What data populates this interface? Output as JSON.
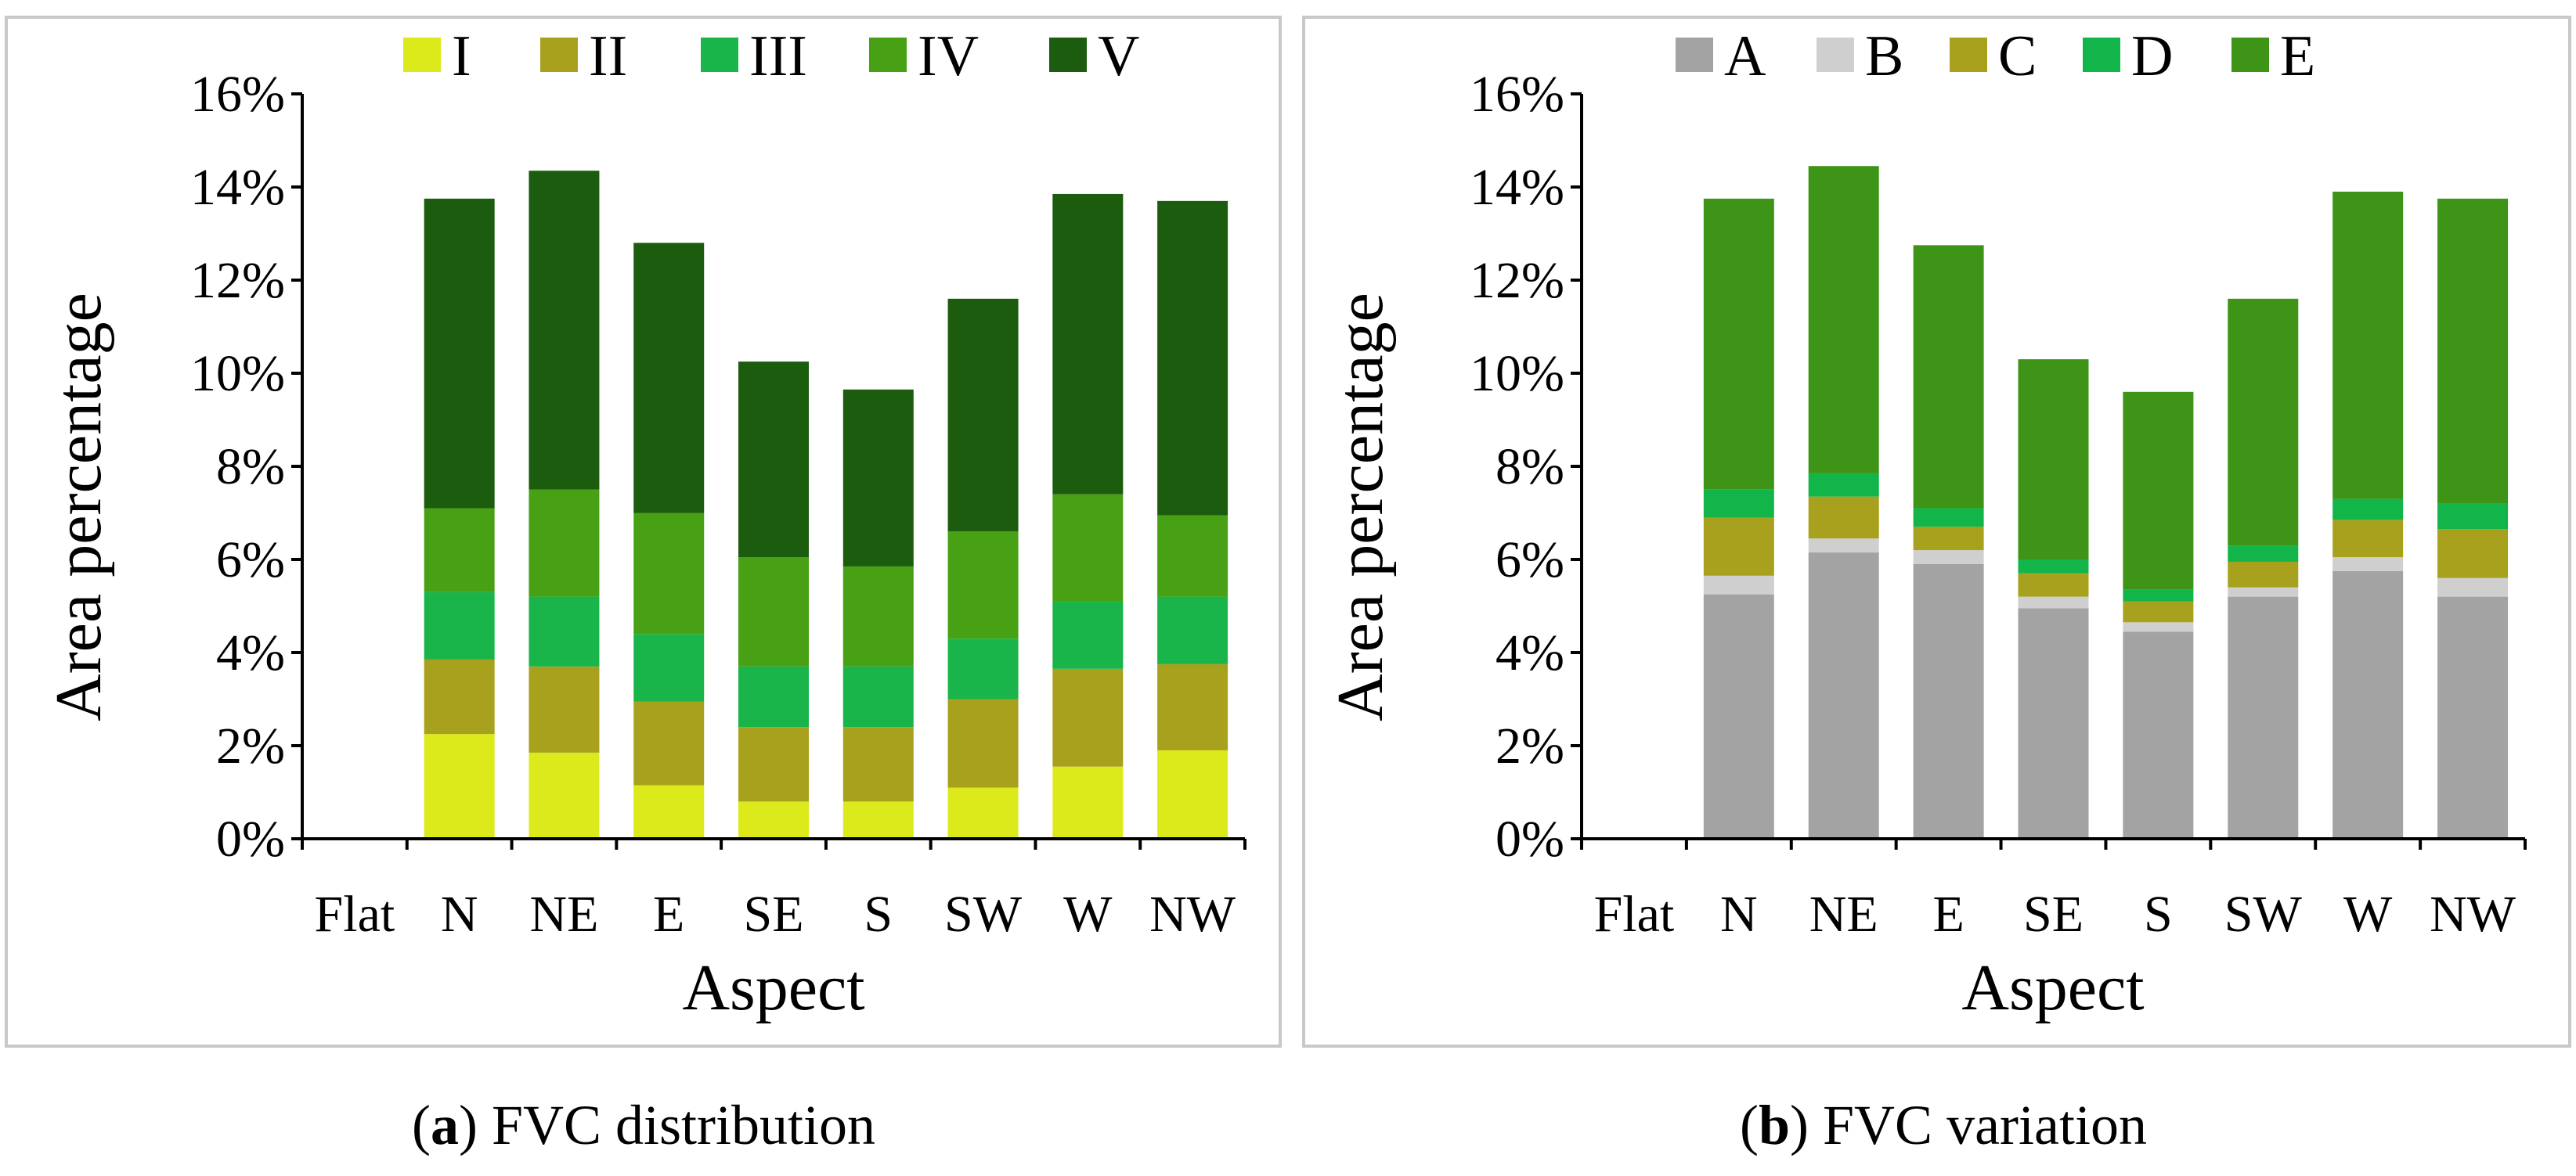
{
  "chart_data": [
    {
      "type": "bar",
      "stacked": true,
      "caption_label": "a",
      "caption_text": "FVC distribution",
      "xlabel": "Aspect",
      "ylabel": "Area percentage",
      "ylim": [
        0,
        16
      ],
      "yticks": [
        "0%",
        "2%",
        "4%",
        "6%",
        "8%",
        "10%",
        "12%",
        "14%",
        "16%"
      ],
      "categories": [
        "Flat",
        "N",
        "NE",
        "E",
        "SE",
        "S",
        "SW",
        "W",
        "NW"
      ],
      "legend_position": "top",
      "series": [
        {
          "name": "I",
          "color": "#dcea1c",
          "values": [
            0,
            2.25,
            1.85,
            1.15,
            0.8,
            0.8,
            1.1,
            1.55,
            1.9
          ]
        },
        {
          "name": "II",
          "color": "#a8a11e",
          "values": [
            0,
            1.6,
            1.85,
            1.8,
            1.6,
            1.6,
            1.9,
            2.1,
            1.85
          ]
        },
        {
          "name": "III",
          "color": "#1ab54a",
          "values": [
            0,
            1.45,
            1.5,
            1.45,
            1.3,
            1.3,
            1.3,
            1.45,
            1.45
          ]
        },
        {
          "name": "IV",
          "color": "#48a014",
          "values": [
            0,
            1.8,
            2.3,
            2.6,
            2.35,
            2.15,
            2.3,
            2.3,
            1.75
          ]
        },
        {
          "name": "V",
          "color": "#1c5c0e",
          "values": [
            0,
            6.65,
            6.85,
            5.8,
            4.2,
            3.8,
            5.0,
            6.45,
            6.75
          ]
        }
      ]
    },
    {
      "type": "bar",
      "stacked": true,
      "caption_label": "b",
      "caption_text": "FVC variation",
      "xlabel": "Aspect",
      "ylabel": "Area percentage",
      "ylim": [
        0,
        16
      ],
      "yticks": [
        "0%",
        "2%",
        "4%",
        "6%",
        "8%",
        "10%",
        "12%",
        "14%",
        "16%"
      ],
      "categories": [
        "Flat",
        "N",
        "NE",
        "E",
        "SE",
        "S",
        "SW",
        "W",
        "NW"
      ],
      "legend_position": "top",
      "series": [
        {
          "name": "A",
          "color": "#a3a3a3",
          "values": [
            0,
            5.25,
            6.15,
            5.9,
            4.95,
            4.45,
            5.2,
            5.75,
            5.2
          ]
        },
        {
          "name": "B",
          "color": "#cfcfcf",
          "values": [
            0,
            0.4,
            0.3,
            0.3,
            0.25,
            0.2,
            0.2,
            0.3,
            0.4
          ]
        },
        {
          "name": "C",
          "color": "#a8a11e",
          "values": [
            0,
            1.25,
            0.9,
            0.5,
            0.5,
            0.45,
            0.55,
            0.8,
            1.05
          ]
        },
        {
          "name": "D",
          "color": "#12b54a",
          "values": [
            0,
            0.6,
            0.5,
            0.4,
            0.3,
            0.25,
            0.35,
            0.45,
            0.55
          ]
        },
        {
          "name": "E",
          "color": "#3d9416",
          "values": [
            0,
            6.25,
            6.6,
            5.65,
            4.3,
            4.25,
            5.3,
            6.6,
            6.55
          ]
        }
      ]
    }
  ]
}
